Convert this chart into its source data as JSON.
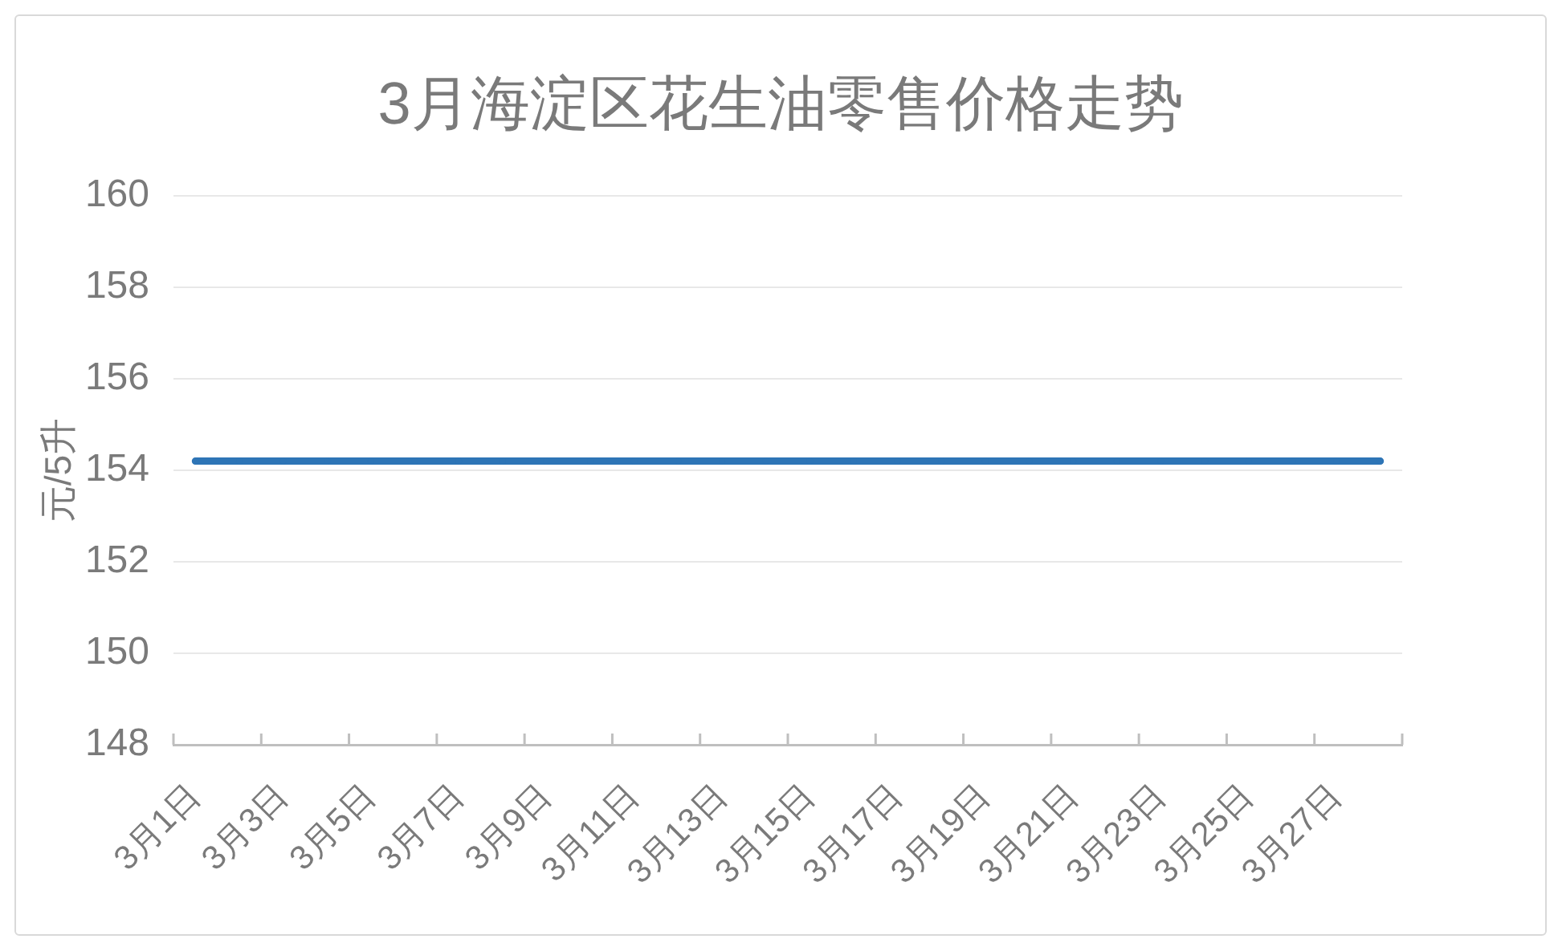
{
  "chart_data": {
    "type": "line",
    "title": "3月海淀区花生油零售价格走势",
    "ylabel": "元/5升",
    "categories": [
      "3月1日",
      null,
      "3月3日",
      null,
      "3月5日",
      null,
      "3月7日",
      null,
      "3月9日",
      null,
      "3月11日",
      null,
      "3月13日",
      null,
      "3月15日",
      null,
      "3月17日",
      null,
      "3月19日",
      null,
      "3月21日",
      null,
      "3月23日",
      null,
      "3月25日",
      null,
      "3月27日",
      null
    ],
    "series": [
      {
        "color": "#2e75b6",
        "values": [
          154.2,
          154.2,
          154.2,
          154.2,
          154.2,
          154.2,
          154.2,
          154.2,
          154.2,
          154.2,
          154.2,
          154.2,
          154.2,
          154.2,
          154.2,
          154.2,
          154.2,
          154.2,
          154.2,
          154.2,
          154.2,
          154.2,
          154.2,
          154.2,
          154.2,
          154.2,
          154.2,
          154.2
        ]
      }
    ],
    "ylim": [
      148,
      160
    ],
    "yticks": [
      148,
      150,
      152,
      154,
      156,
      158,
      160
    ],
    "grid": "y",
    "legend": false,
    "marker": "circle",
    "line_style": "solid"
  }
}
